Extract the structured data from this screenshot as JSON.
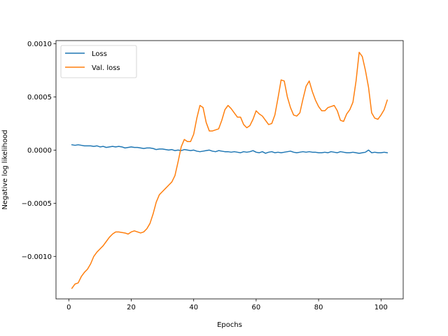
{
  "chart_data": {
    "type": "line",
    "title": "",
    "xlabel": "Epochs",
    "ylabel": "Negative log likelihood",
    "xlim": [
      -4.1,
      107.1
    ],
    "ylim": [
      -0.0014,
      0.00103
    ],
    "xticks": [
      0,
      20,
      40,
      60,
      80,
      100
    ],
    "xtick_labels": [
      "0",
      "20",
      "40",
      "60",
      "80",
      "100"
    ],
    "yticks": [
      -0.001,
      -0.0005,
      0.0,
      0.0005,
      0.001
    ],
    "ytick_labels": [
      "−0.0010",
      "−0.0005",
      "0.0000",
      "0.0005",
      "0.0010"
    ],
    "grid": false,
    "legend_position": "top-left",
    "series": [
      {
        "name": "Loss",
        "color": "#1f77b4",
        "x": [
          1,
          2,
          3,
          4,
          5,
          6,
          7,
          8,
          9,
          10,
          11,
          12,
          13,
          14,
          15,
          16,
          17,
          18,
          19,
          20,
          21,
          22,
          23,
          24,
          25,
          26,
          27,
          28,
          29,
          30,
          31,
          32,
          33,
          34,
          35,
          36,
          37,
          38,
          39,
          40,
          41,
          42,
          43,
          44,
          45,
          46,
          47,
          48,
          49,
          50,
          51,
          52,
          53,
          54,
          55,
          56,
          57,
          58,
          59,
          60,
          61,
          62,
          63,
          64,
          65,
          66,
          67,
          68,
          69,
          70,
          71,
          72,
          73,
          74,
          75,
          76,
          77,
          78,
          79,
          80,
          81,
          82,
          83,
          84,
          85,
          86,
          87,
          88,
          89,
          90,
          91,
          92,
          93,
          94,
          95,
          96,
          97,
          98,
          99,
          100,
          101,
          102
        ],
        "y": [
          5e-05,
          4.5e-05,
          5e-05,
          4.5e-05,
          4e-05,
          4e-05,
          4e-05,
          3.5e-05,
          4e-05,
          3e-05,
          3.5e-05,
          2.5e-05,
          3e-05,
          3.5e-05,
          3e-05,
          3.5e-05,
          3e-05,
          2e-05,
          2.5e-05,
          3e-05,
          2.5e-05,
          2.5e-05,
          2e-05,
          1.5e-05,
          2e-05,
          2e-05,
          1.5e-05,
          5e-06,
          1e-05,
          1e-05,
          5e-06,
          0.0,
          5e-06,
          -5e-06,
          0.0,
          -5e-06,
          5e-06,
          0.0,
          -5e-06,
          0.0,
          -1e-05,
          -1.5e-05,
          -1e-05,
          -5e-06,
          0.0,
          -1e-05,
          -1.5e-05,
          -5e-06,
          -1e-05,
          -1.5e-05,
          -1.5e-05,
          -2e-05,
          -1.5e-05,
          -2e-05,
          -2.5e-05,
          -1.5e-05,
          -2e-05,
          -1.5e-05,
          -5e-06,
          -2e-05,
          -2.5e-05,
          -1.5e-05,
          -3e-05,
          -2e-05,
          -1.5e-05,
          -2.5e-05,
          -2e-05,
          -2.5e-05,
          -2e-05,
          -1.5e-05,
          -1e-05,
          -2e-05,
          -2.5e-05,
          -2e-05,
          -1.5e-05,
          -2e-05,
          -1.5e-05,
          -2e-05,
          -2e-05,
          -2.5e-05,
          -2.5e-05,
          -2e-05,
          -2.5e-05,
          -1.5e-05,
          -2e-05,
          -2.5e-05,
          -1.5e-05,
          -2e-05,
          -2.5e-05,
          -2.5e-05,
          -2e-05,
          -2.5e-05,
          -3e-05,
          -2.5e-05,
          -2e-05,
          0.0,
          -2.5e-05,
          -2e-05,
          -2.5e-05,
          -2.5e-05,
          -2e-05,
          -2.5e-05
        ]
      },
      {
        "name": "Val. loss",
        "color": "#ff7f0e",
        "x": [
          1,
          2,
          3,
          4,
          5,
          6,
          7,
          8,
          9,
          10,
          11,
          12,
          13,
          14,
          15,
          16,
          17,
          18,
          19,
          20,
          21,
          22,
          23,
          24,
          25,
          26,
          27,
          28,
          29,
          30,
          31,
          32,
          33,
          34,
          35,
          36,
          37,
          38,
          39,
          40,
          41,
          42,
          43,
          44,
          45,
          46,
          47,
          48,
          49,
          50,
          51,
          52,
          53,
          54,
          55,
          56,
          57,
          58,
          59,
          60,
          61,
          62,
          63,
          64,
          65,
          66,
          67,
          68,
          69,
          70,
          71,
          72,
          73,
          74,
          75,
          76,
          77,
          78,
          79,
          80,
          81,
          82,
          83,
          84,
          85,
          86,
          87,
          88,
          89,
          90,
          91,
          92,
          93,
          94,
          95,
          96,
          97,
          98,
          99,
          100,
          101,
          102
        ],
        "y": [
          -0.0013,
          -0.00126,
          -0.00125,
          -0.00119,
          -0.00115,
          -0.00112,
          -0.00107,
          -0.001,
          -0.00096,
          -0.00093,
          -0.0009,
          -0.00086,
          -0.00082,
          -0.00079,
          -0.00077,
          -0.00077,
          -0.000775,
          -0.00078,
          -0.00079,
          -0.00077,
          -0.00076,
          -0.00077,
          -0.00078,
          -0.00077,
          -0.00074,
          -0.00069,
          -0.0006,
          -0.00049,
          -0.00042,
          -0.00039,
          -0.00036,
          -0.00033,
          -0.0003,
          -0.00024,
          -0.00011,
          3e-05,
          0.0001,
          8e-05,
          8e-05,
          0.00015,
          0.0003,
          0.00042,
          0.0004,
          0.00026,
          0.00018,
          0.00018,
          0.00019,
          0.0002,
          0.00028,
          0.00038,
          0.00042,
          0.00039,
          0.00035,
          0.00031,
          0.00031,
          0.00024,
          0.00021,
          0.00023,
          0.00029,
          0.00037,
          0.00034,
          0.00032,
          0.00028,
          0.00024,
          0.00025,
          0.00033,
          0.00049,
          0.00066,
          0.00065,
          0.0005,
          0.0004,
          0.00033,
          0.00032,
          0.00035,
          0.00048,
          0.0006,
          0.00065,
          0.00055,
          0.00047,
          0.00041,
          0.00037,
          0.00037,
          0.0004,
          0.00041,
          0.00042,
          0.00037,
          0.00028,
          0.00027,
          0.00034,
          0.00038,
          0.00045,
          0.00065,
          0.00092,
          0.00088,
          0.00075,
          0.00059,
          0.00035,
          0.0003,
          0.00029,
          0.00033,
          0.00038,
          0.00047
        ]
      }
    ]
  }
}
